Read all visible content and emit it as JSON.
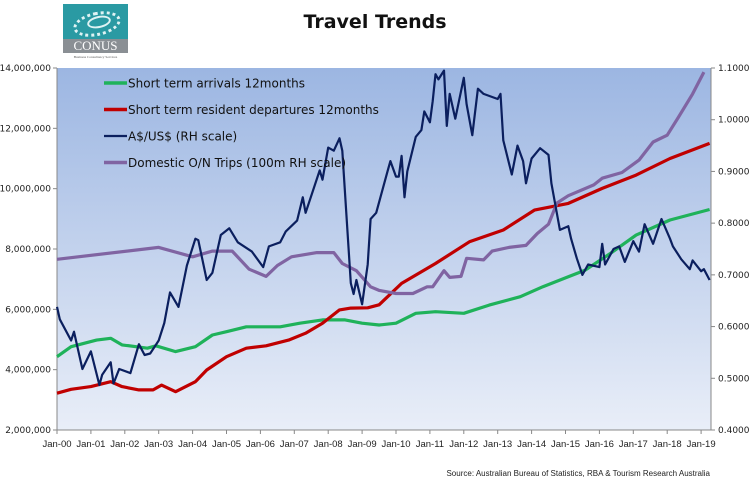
{
  "logo": {
    "text": "CONUS",
    "tagline": "Business Consultancy Services"
  },
  "source_note": "Source: Australian Bureau of Statistics, RBA & Tourism Research Australia",
  "chart_data": {
    "type": "line",
    "title": "Travel Trends",
    "x_ticks": [
      "Jan-00",
      "Jan-01",
      "Jan-02",
      "Jan-03",
      "Jan-04",
      "Jan-05",
      "Jan-06",
      "Jan-07",
      "Jan-08",
      "Jan-09",
      "Jan-10",
      "Jan-11",
      "Jan-12",
      "Jan-13",
      "Jan-14",
      "Jan-15",
      "Jan-16",
      "Jan-17",
      "Jan-18",
      "Jan-19"
    ],
    "x_range": [
      "2000-01",
      "2019-06"
    ],
    "y_left": {
      "range": [
        2000000,
        14000000
      ],
      "ticks": [
        "2,000,000",
        "4,000,000",
        "6,000,000",
        "8,000,000",
        "10,000,000",
        "12,000,000",
        "14,000,000"
      ]
    },
    "y_right": {
      "range": [
        0.4,
        1.1
      ],
      "ticks": [
        "0.4000",
        "0.5000",
        "0.6000",
        "0.7000",
        "0.8000",
        "0.9000",
        "1.0000",
        "1.1000"
      ]
    },
    "grid": false,
    "legend": "top-left",
    "background": [
      "#9cb6e2",
      "#e9eef8"
    ],
    "series": [
      {
        "name": "Short term arrivals 12months",
        "axis": "left",
        "color": "#1fb25a",
        "points": [
          [
            "2000-01",
            4430000
          ],
          [
            "2000-06",
            4760000
          ],
          [
            "2001-03",
            4980000
          ],
          [
            "2001-08",
            5040000
          ],
          [
            "2001-12",
            4820000
          ],
          [
            "2002-09",
            4710000
          ],
          [
            "2002-12",
            4790000
          ],
          [
            "2003-07",
            4600000
          ],
          [
            "2004-02",
            4760000
          ],
          [
            "2004-08",
            5150000
          ],
          [
            "2005-01",
            5260000
          ],
          [
            "2005-08",
            5420000
          ],
          [
            "2006-08",
            5420000
          ],
          [
            "2007-03",
            5540000
          ],
          [
            "2007-11",
            5650000
          ],
          [
            "2008-07",
            5650000
          ],
          [
            "2009-01",
            5540000
          ],
          [
            "2009-07",
            5480000
          ],
          [
            "2010-01",
            5540000
          ],
          [
            "2010-08",
            5870000
          ],
          [
            "2011-03",
            5920000
          ],
          [
            "2012-01",
            5870000
          ],
          [
            "2012-10",
            6140000
          ],
          [
            "2013-09",
            6420000
          ],
          [
            "2014-05",
            6750000
          ],
          [
            "2015-02",
            7080000
          ],
          [
            "2015-08",
            7300000
          ],
          [
            "2016-05",
            7860000
          ],
          [
            "2017-02",
            8460000
          ],
          [
            "2018-02",
            8960000
          ],
          [
            "2019-04",
            9310000
          ]
        ]
      },
      {
        "name": "Short term resident departures 12months",
        "axis": "left",
        "color": "#c00000",
        "points": [
          [
            "2000-01",
            3220000
          ],
          [
            "2000-06",
            3350000
          ],
          [
            "2001-01",
            3440000
          ],
          [
            "2001-08",
            3600000
          ],
          [
            "2001-12",
            3440000
          ],
          [
            "2002-06",
            3330000
          ],
          [
            "2002-11",
            3330000
          ],
          [
            "2003-02",
            3490000
          ],
          [
            "2003-07",
            3270000
          ],
          [
            "2004-02",
            3600000
          ],
          [
            "2004-06",
            3990000
          ],
          [
            "2005-01",
            4430000
          ],
          [
            "2005-08",
            4710000
          ],
          [
            "2006-03",
            4790000
          ],
          [
            "2006-11",
            4980000
          ],
          [
            "2007-05",
            5210000
          ],
          [
            "2007-11",
            5540000
          ],
          [
            "2008-05",
            5980000
          ],
          [
            "2008-09",
            6040000
          ],
          [
            "2009-03",
            6050000
          ],
          [
            "2009-07",
            6150000
          ],
          [
            "2010-03",
            6860000
          ],
          [
            "2011-03",
            7520000
          ],
          [
            "2012-03",
            8240000
          ],
          [
            "2013-03",
            8630000
          ],
          [
            "2014-02",
            9290000
          ],
          [
            "2015-02",
            9510000
          ],
          [
            "2016-02",
            10010000
          ],
          [
            "2017-02",
            10450000
          ],
          [
            "2018-02",
            11000000
          ],
          [
            "2019-04",
            11500000
          ]
        ]
      },
      {
        "name": "A$/US$ (RH scale)",
        "axis": "right",
        "color": "#0b1f5e",
        "points": [
          [
            "2000-01",
            0.638
          ],
          [
            "2000-02",
            0.614
          ],
          [
            "2000-06",
            0.573
          ],
          [
            "2000-07",
            0.59
          ],
          [
            "2000-10",
            0.518
          ],
          [
            "2001-01",
            0.552
          ],
          [
            "2001-04",
            0.487
          ],
          [
            "2001-05",
            0.507
          ],
          [
            "2001-08",
            0.531
          ],
          [
            "2001-09",
            0.49
          ],
          [
            "2001-11",
            0.518
          ],
          [
            "2002-03",
            0.51
          ],
          [
            "2002-06",
            0.566
          ],
          [
            "2002-08",
            0.545
          ],
          [
            "2002-10",
            0.548
          ],
          [
            "2003-01",
            0.573
          ],
          [
            "2003-03",
            0.607
          ],
          [
            "2003-05",
            0.666
          ],
          [
            "2003-08",
            0.638
          ],
          [
            "2003-11",
            0.718
          ],
          [
            "2004-02",
            0.77
          ],
          [
            "2004-03",
            0.767
          ],
          [
            "2004-06",
            0.69
          ],
          [
            "2004-08",
            0.704
          ],
          [
            "2004-11",
            0.777
          ],
          [
            "2005-02",
            0.79
          ],
          [
            "2005-05",
            0.763
          ],
          [
            "2005-10",
            0.745
          ],
          [
            "2006-02",
            0.715
          ],
          [
            "2006-04",
            0.755
          ],
          [
            "2006-08",
            0.763
          ],
          [
            "2006-10",
            0.784
          ],
          [
            "2007-02",
            0.805
          ],
          [
            "2007-04",
            0.85
          ],
          [
            "2007-05",
            0.82
          ],
          [
            "2007-10",
            0.902
          ],
          [
            "2007-11",
            0.884
          ],
          [
            "2008-01",
            0.946
          ],
          [
            "2008-03",
            0.94
          ],
          [
            "2008-05",
            0.964
          ],
          [
            "2008-06",
            0.94
          ],
          [
            "2008-09",
            0.684
          ],
          [
            "2008-10",
            0.663
          ],
          [
            "2008-11",
            0.69
          ],
          [
            "2009-01",
            0.643
          ],
          [
            "2009-03",
            0.72
          ],
          [
            "2009-04",
            0.808
          ],
          [
            "2009-06",
            0.82
          ],
          [
            "2009-10",
            0.9
          ],
          [
            "2009-11",
            0.92
          ],
          [
            "2010-01",
            0.89
          ],
          [
            "2010-02",
            0.89
          ],
          [
            "2010-03",
            0.93
          ],
          [
            "2010-04",
            0.85
          ],
          [
            "2010-05",
            0.9
          ],
          [
            "2010-08",
            0.967
          ],
          [
            "2010-10",
            0.98
          ],
          [
            "2010-11",
            1.016
          ],
          [
            "2011-01",
            0.995
          ],
          [
            "2011-02",
            1.036
          ],
          [
            "2011-03",
            1.088
          ],
          [
            "2011-04",
            1.078
          ],
          [
            "2011-06",
            1.095
          ],
          [
            "2011-07",
            0.988
          ],
          [
            "2011-08",
            1.05
          ],
          [
            "2011-10",
            1.002
          ],
          [
            "2012-01",
            1.081
          ],
          [
            "2012-02",
            1.03
          ],
          [
            "2012-04",
            0.97
          ],
          [
            "2012-06",
            1.06
          ],
          [
            "2012-08",
            1.05
          ],
          [
            "2013-01",
            1.04
          ],
          [
            "2013-02",
            1.05
          ],
          [
            "2013-03",
            0.96
          ],
          [
            "2013-06",
            0.894
          ],
          [
            "2013-08",
            0.95
          ],
          [
            "2013-10",
            0.92
          ],
          [
            "2013-11",
            0.877
          ],
          [
            "2014-01",
            0.925
          ],
          [
            "2014-04",
            0.945
          ],
          [
            "2014-07",
            0.932
          ],
          [
            "2014-08",
            0.877
          ],
          [
            "2014-11",
            0.787
          ],
          [
            "2015-02",
            0.794
          ],
          [
            "2015-03",
            0.77
          ],
          [
            "2015-05",
            0.732
          ],
          [
            "2015-07",
            0.7
          ],
          [
            "2015-09",
            0.72
          ],
          [
            "2016-01",
            0.715
          ],
          [
            "2016-02",
            0.76
          ],
          [
            "2016-03",
            0.72
          ],
          [
            "2016-06",
            0.75
          ],
          [
            "2016-08",
            0.755
          ],
          [
            "2016-10",
            0.725
          ],
          [
            "2017-01",
            0.765
          ],
          [
            "2017-03",
            0.745
          ],
          [
            "2017-05",
            0.798
          ],
          [
            "2017-08",
            0.76
          ],
          [
            "2017-11",
            0.808
          ],
          [
            "2018-02",
            0.77
          ],
          [
            "2018-03",
            0.755
          ],
          [
            "2018-06",
            0.73
          ],
          [
            "2018-09",
            0.711
          ],
          [
            "2018-10",
            0.728
          ],
          [
            "2019-01",
            0.707
          ],
          [
            "2019-02",
            0.711
          ],
          [
            "2019-04",
            0.69
          ]
        ]
      },
      {
        "name": "Domestic O/N Trips (100m RH scale)",
        "axis": "right",
        "color": "#8064a2",
        "points": [
          [
            "2000-01",
            0.73
          ],
          [
            "2003-01",
            0.753
          ],
          [
            "2004-01",
            0.735
          ],
          [
            "2004-08",
            0.746
          ],
          [
            "2005-03",
            0.746
          ],
          [
            "2005-09",
            0.711
          ],
          [
            "2006-03",
            0.697
          ],
          [
            "2006-07",
            0.718
          ],
          [
            "2006-12",
            0.735
          ],
          [
            "2007-09",
            0.743
          ],
          [
            "2008-03",
            0.743
          ],
          [
            "2008-06",
            0.722
          ],
          [
            "2008-11",
            0.708
          ],
          [
            "2009-04",
            0.677
          ],
          [
            "2009-07",
            0.67
          ],
          [
            "2010-01",
            0.664
          ],
          [
            "2010-07",
            0.664
          ],
          [
            "2010-12",
            0.677
          ],
          [
            "2011-02",
            0.677
          ],
          [
            "2011-06",
            0.708
          ],
          [
            "2011-08",
            0.695
          ],
          [
            "2011-12",
            0.697
          ],
          [
            "2012-02",
            0.732
          ],
          [
            "2012-08",
            0.729
          ],
          [
            "2012-11",
            0.746
          ],
          [
            "2013-05",
            0.753
          ],
          [
            "2013-11",
            0.757
          ],
          [
            "2014-03",
            0.78
          ],
          [
            "2014-07",
            0.798
          ],
          [
            "2014-10",
            0.839
          ],
          [
            "2015-02",
            0.853
          ],
          [
            "2015-11",
            0.874
          ],
          [
            "2016-02",
            0.887
          ],
          [
            "2016-09",
            0.898
          ],
          [
            "2017-03",
            0.922
          ],
          [
            "2017-08",
            0.957
          ],
          [
            "2018-01",
            0.97
          ],
          [
            "2018-05",
            1.005
          ],
          [
            "2018-10",
            1.05
          ],
          [
            "2019-02",
            1.092
          ]
        ]
      }
    ]
  }
}
